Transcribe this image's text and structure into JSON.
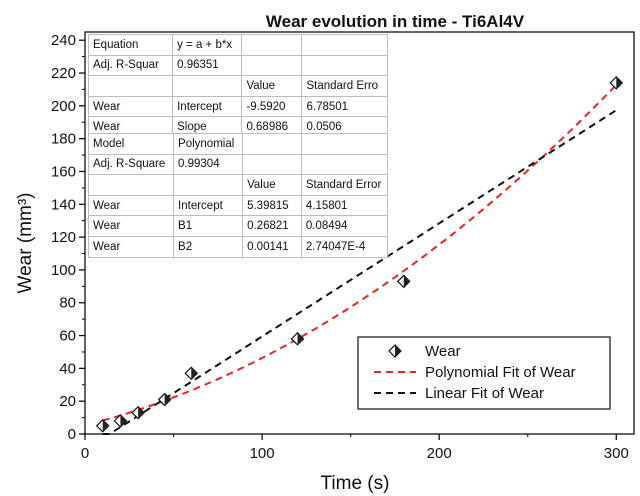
{
  "chart_data": {
    "type": "scatter",
    "title": "Wear evolution in time - Ti6Al4V",
    "xlabel": "Time (s)",
    "ylabel": "Wear (mm³)",
    "xlim": [
      0,
      310
    ],
    "ylim": [
      0,
      245
    ],
    "xticks": [
      0,
      100,
      200,
      300
    ],
    "yticks": [
      0,
      20,
      40,
      60,
      80,
      100,
      120,
      140,
      160,
      180,
      200,
      220,
      240
    ],
    "series": [
      {
        "name": "Wear",
        "kind": "points",
        "marker": "half-filled diamond",
        "x": [
          10,
          20,
          30,
          45,
          60,
          120,
          180,
          300
        ],
        "y": [
          5,
          8,
          13,
          21,
          37,
          58,
          93,
          214
        ]
      },
      {
        "name": "Polynomial Fit of Wear",
        "kind": "fit-poly2",
        "color": "#ee2222",
        "dash": "dashed",
        "x_range": [
          10,
          300
        ],
        "coefficients": [
          5.39815,
          0.26821,
          0.00141
        ]
      },
      {
        "name": "Linear Fit of Wear",
        "kind": "fit-linear",
        "color": "#111111",
        "dash": "dashed",
        "x_range": [
          10,
          300
        ],
        "coefficients": [
          -9.592,
          0.68986
        ]
      }
    ],
    "legend": {
      "position": "lower-right",
      "items": [
        "Wear",
        "Polynomial Fit of Wear",
        "Linear Fit of Wear"
      ]
    },
    "grid": false
  },
  "tables": {
    "linear": [
      [
        "Equation",
        "y = a + b*x",
        "",
        ""
      ],
      [
        "Adj. R-Squar",
        "0.96351",
        "",
        ""
      ],
      [
        "",
        "",
        "Value",
        "Standard Erro"
      ],
      [
        "Wear",
        "Intercept",
        "-9.5920",
        "6.78501"
      ],
      [
        "Wear",
        "Slope",
        "0.68986",
        "0.0506"
      ]
    ],
    "polynomial": [
      [
        "Model",
        "Polynomial",
        "",
        ""
      ],
      [
        "Adj. R-Square",
        "0.99304",
        "",
        ""
      ],
      [
        "",
        "",
        "Value",
        "Standard Error"
      ],
      [
        "Wear",
        "Intercept",
        "5.39815",
        "4.15801"
      ],
      [
        "Wear",
        "B1",
        "0.26821",
        "0.08494"
      ],
      [
        "Wear",
        "B2",
        "0.00141",
        "2.74047E-4"
      ]
    ]
  }
}
